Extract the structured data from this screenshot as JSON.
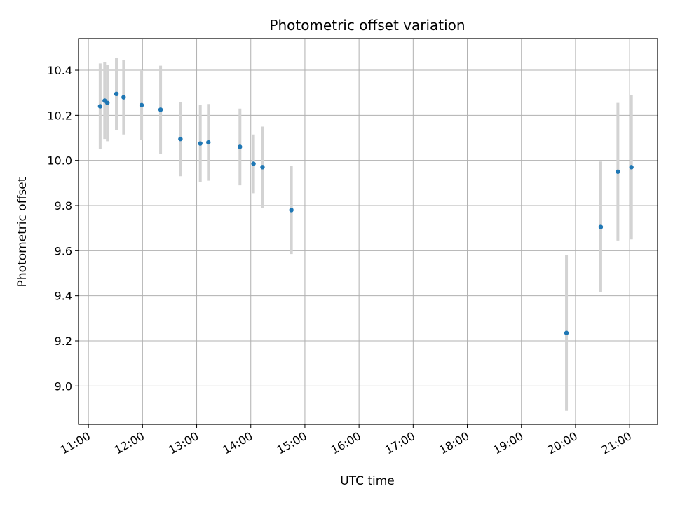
{
  "chart_data": {
    "type": "scatter",
    "title": "Photometric offset variation",
    "xlabel": "UTC time",
    "ylabel": "Photometric offset",
    "x_ticks": [
      "11:00",
      "12:00",
      "13:00",
      "14:00",
      "15:00",
      "16:00",
      "17:00",
      "18:00",
      "19:00",
      "20:00",
      "21:00"
    ],
    "y_ticks": [
      "9.0",
      "9.2",
      "9.4",
      "9.6",
      "9.8",
      "10.0",
      "10.2",
      "10.4"
    ],
    "xlim": [
      "10:49",
      "21:31"
    ],
    "ylim": [
      8.83,
      10.54
    ],
    "grid": true,
    "point_color": "#1f77b4",
    "errorbar_color": "#d3d3d3",
    "points": [
      {
        "x": "11:13",
        "y": 10.24,
        "err": 0.19
      },
      {
        "x": "11:18",
        "y": 10.265,
        "err": 0.17
      },
      {
        "x": "11:21",
        "y": 10.255,
        "err": 0.17
      },
      {
        "x": "11:31",
        "y": 10.295,
        "err": 0.16
      },
      {
        "x": "11:39",
        "y": 10.28,
        "err": 0.165
      },
      {
        "x": "11:59",
        "y": 10.245,
        "err": 0.155
      },
      {
        "x": "12:20",
        "y": 10.225,
        "err": 0.195
      },
      {
        "x": "12:42",
        "y": 10.095,
        "err": 0.165
      },
      {
        "x": "13:04",
        "y": 10.075,
        "err": 0.17
      },
      {
        "x": "13:13",
        "y": 10.08,
        "err": 0.17
      },
      {
        "x": "13:48",
        "y": 10.06,
        "err": 0.17
      },
      {
        "x": "14:03",
        "y": 9.985,
        "err": 0.13
      },
      {
        "x": "14:13",
        "y": 9.97,
        "err": 0.18
      },
      {
        "x": "14:45",
        "y": 9.78,
        "err": 0.195
      },
      {
        "x": "19:50",
        "y": 9.235,
        "err": 0.345
      },
      {
        "x": "20:28",
        "y": 9.705,
        "err": 0.29
      },
      {
        "x": "20:47",
        "y": 9.95,
        "err": 0.305
      },
      {
        "x": "21:02",
        "y": 9.97,
        "err": 0.32
      }
    ]
  }
}
